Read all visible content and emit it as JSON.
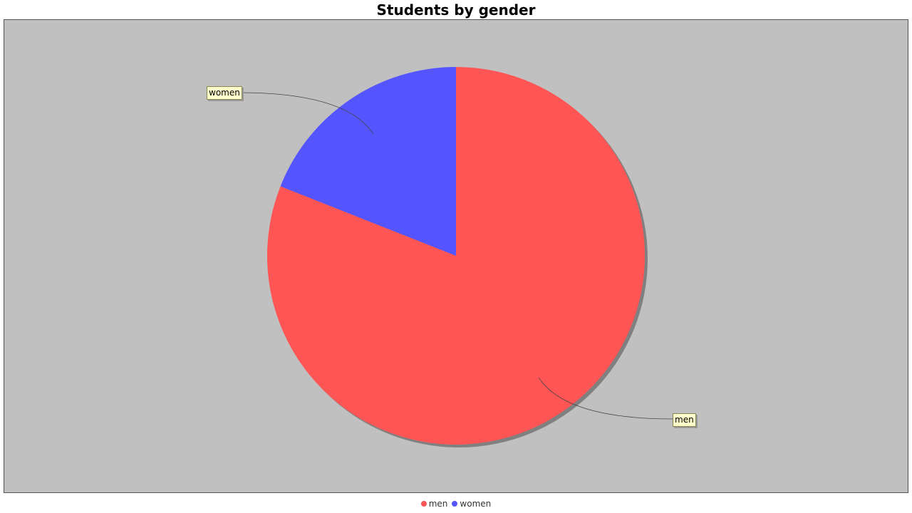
{
  "chart_data": {
    "type": "pie",
    "title": "Students by gender",
    "slices": [
      {
        "name": "men",
        "value": 81,
        "color": "#ff5555"
      },
      {
        "name": "women",
        "value": 19,
        "color": "#5555ff"
      }
    ],
    "labels_visible": true,
    "legend_position": "bottom",
    "background": "#c0c0c0"
  }
}
